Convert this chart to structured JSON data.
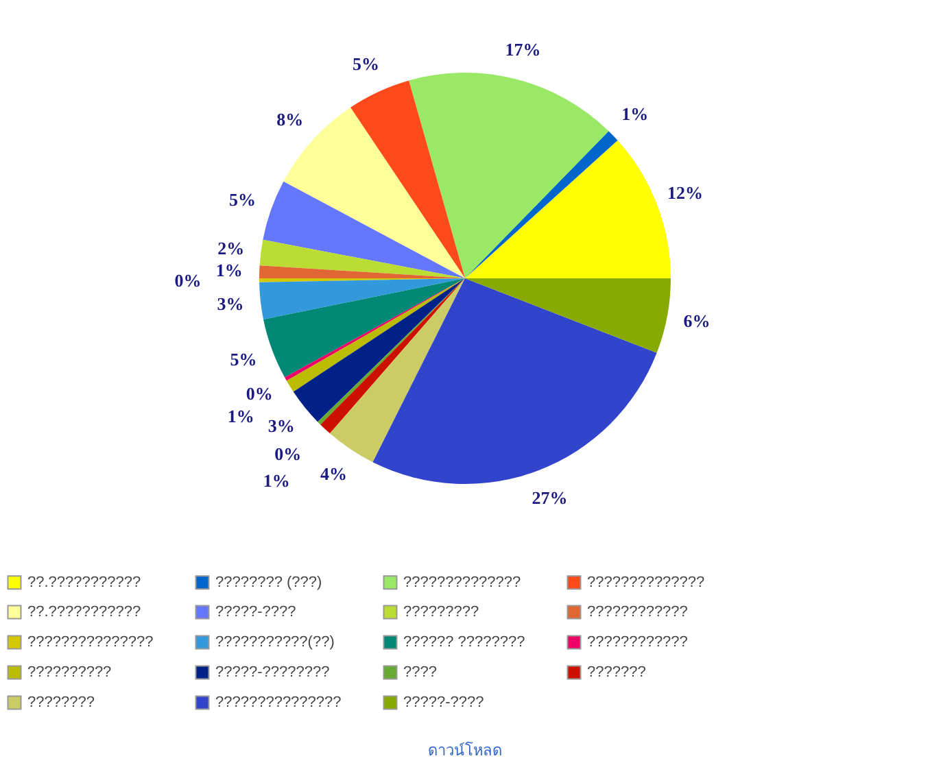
{
  "chart_data": {
    "type": "pie",
    "categories": [
      "??.???????????",
      "???????? (???)",
      "??????????????",
      "??????????????",
      "??.???????????",
      "?????-????",
      "?????????",
      "????????????",
      "???????????????",
      "???????????(??)",
      "?????? ????????",
      "????????????",
      "??????????",
      "?????-????????",
      "????",
      "???????",
      "????????",
      "???????????????",
      "?????-????"
    ],
    "values": [
      11.7,
      1,
      16.7,
      5,
      7.8,
      4.8,
      2,
      1,
      0.3,
      2.9,
      4.8,
      0.3,
      1,
      3,
      0.3,
      1,
      4,
      26.5,
      5.9
    ],
    "value_labels": [
      "12%",
      "1%",
      "17%",
      "5%",
      "8%",
      "5%",
      "2%",
      "1%",
      "0%",
      "3%",
      "5%",
      "0%",
      "1%",
      "3%",
      "0%",
      "1%",
      "4%",
      "27%",
      "6%"
    ],
    "colors": [
      "#ffff00",
      "#0066cc",
      "#99e866",
      "#ff4a1a",
      "#ffff99",
      "#6677ff",
      "#bbdd33",
      "#e06633",
      "#d6c800",
      "#3399dd",
      "#008877",
      "#ee0066",
      "#bbbb00",
      "#002288",
      "#66aa33",
      "#cc1100",
      "#cccc66",
      "#3344cc",
      "#88aa00"
    ],
    "legend": "bottom",
    "annotations": [
      "ดาวน์โหลด"
    ]
  }
}
